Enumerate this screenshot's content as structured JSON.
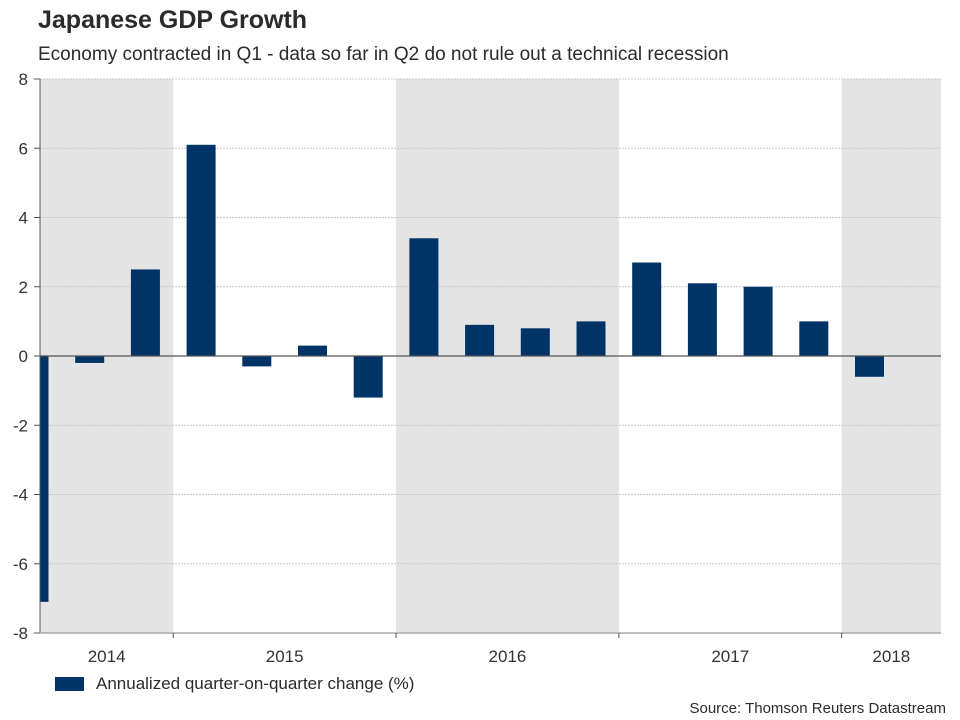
{
  "title": "Japanese GDP Growth",
  "subtitle": "Economy contracted in Q1 - data so far in Q2 do not rule out a technical recession",
  "source": "Source: Thomson Reuters Datastream",
  "colors": {
    "bar": "#003366",
    "band": "#e4e4e4",
    "grid": "#c8c8c8",
    "axis": "#555555"
  },
  "chart_data": {
    "type": "bar",
    "title": "Japanese GDP Growth",
    "subtitle": "Economy contracted in Q1 - data so far in Q2 do not rule out a technical recession",
    "xlabel": "",
    "ylabel": "",
    "ylim": [
      -8,
      8
    ],
    "yticks": [
      -8,
      -6,
      -4,
      -2,
      0,
      2,
      4,
      6,
      8
    ],
    "grid": true,
    "categories": [
      "Q2 2014",
      "Q3 2014",
      "Q4 2014",
      "Q1 2015",
      "Q2 2015",
      "Q3 2015",
      "Q4 2015",
      "Q1 2016",
      "Q2 2016",
      "Q3 2016",
      "Q4 2016",
      "Q1 2017",
      "Q2 2017",
      "Q3 2017",
      "Q4 2017",
      "Q1 2018"
    ],
    "series": [
      {
        "name": "Annualized quarter-on-quarter change (%)",
        "values": [
          -7.1,
          -0.2,
          2.5,
          6.1,
          -0.3,
          0.3,
          -1.2,
          3.4,
          0.9,
          0.8,
          1.0,
          2.7,
          2.1,
          2.0,
          1.0,
          -0.6
        ]
      }
    ],
    "year_labels": [
      "2014",
      "2015",
      "2016",
      "2017",
      "2018"
    ],
    "shaded_years": [
      "2014",
      "2016",
      "2018"
    ],
    "legend": {
      "position": "bottom-left",
      "entries": [
        "Annualized quarter-on-quarter change (%)"
      ]
    }
  }
}
